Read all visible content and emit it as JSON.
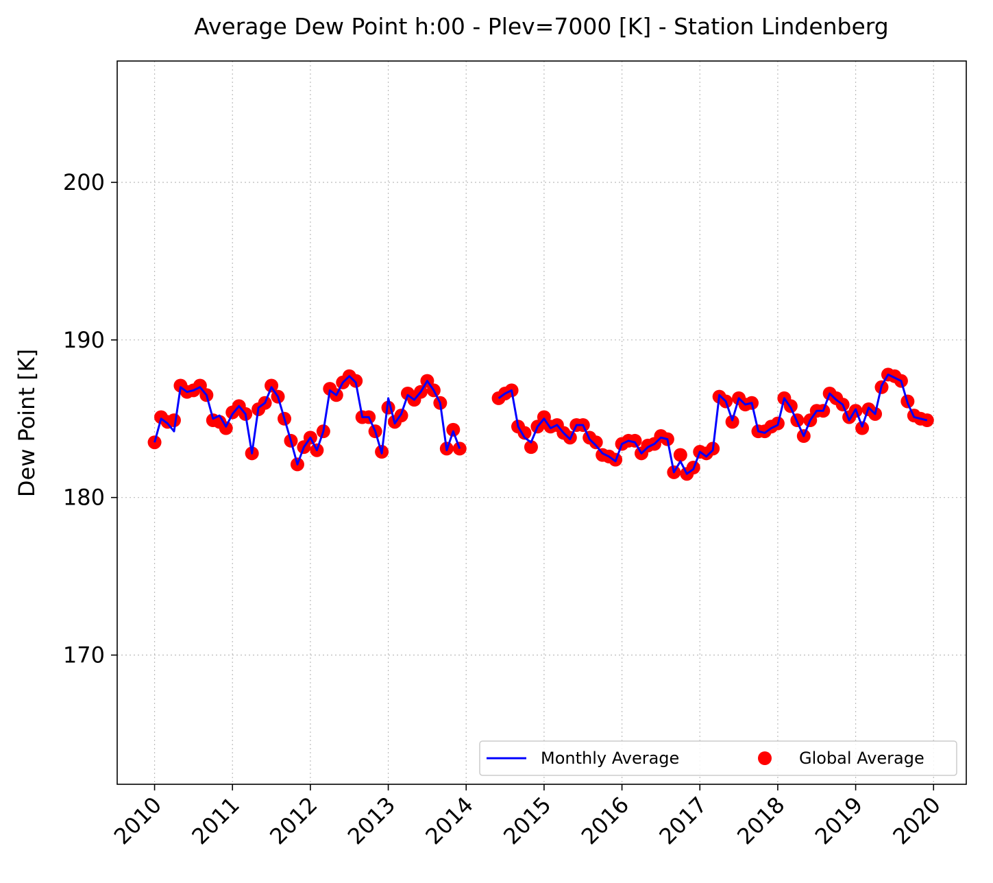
{
  "chart_data": {
    "type": "line",
    "title": "Average Dew Point h:00 - Plev=7000 [K] - Station Lindenberg",
    "xlabel": "",
    "ylabel": "Dew Point [K]",
    "xlim": [
      2009.52,
      2020.42
    ],
    "ylim": [
      161.8,
      207.7
    ],
    "x_ticks": [
      "2010",
      "2011",
      "2012",
      "2013",
      "2014",
      "2015",
      "2016",
      "2017",
      "2018",
      "2019",
      "2020"
    ],
    "y_ticks": [
      170,
      180,
      190,
      200
    ],
    "grid": true,
    "legend_position": "lower-right",
    "series": [
      {
        "name": "Monthly Average",
        "kind": "line",
        "color": "#0000ff",
        "years": [
          2010,
          2011,
          2012,
          2013,
          2014,
          2015,
          2016,
          2017,
          2018,
          2019
        ],
        "values": [
          [
            183.5,
            185.0,
            184.7,
            184.2,
            187.0,
            186.7,
            186.8,
            187.0,
            186.5,
            185.0,
            185.2,
            184.5
          ],
          [
            185.3,
            185.8,
            185.3,
            182.8,
            185.7,
            186.0,
            187.0,
            186.4,
            185.0,
            183.6,
            182.1,
            183.2
          ],
          [
            183.8,
            183.0,
            184.2,
            186.8,
            186.5,
            187.3,
            187.7,
            187.3,
            185.1,
            185.1,
            184.2,
            182.8
          ],
          [
            186.3,
            184.7,
            185.3,
            186.5,
            186.2,
            186.7,
            187.4,
            186.8,
            186.0,
            183.0,
            184.2,
            183.1
          ],
          [
            null,
            null,
            null,
            null,
            null,
            186.3,
            186.6,
            186.8,
            184.5,
            183.8,
            183.5,
            184.5
          ],
          [
            185.0,
            184.4,
            184.6,
            184.1,
            183.7,
            184.6,
            184.6,
            183.7,
            183.3,
            182.8,
            182.6,
            182.3
          ],
          [
            183.4,
            183.6,
            183.5,
            182.8,
            183.2,
            183.4,
            183.8,
            183.7,
            181.6,
            182.3,
            181.5,
            181.8
          ],
          [
            182.9,
            182.6,
            183.0,
            186.5,
            186.1,
            184.9,
            186.3,
            185.9,
            186.0,
            184.2,
            184.1,
            184.4
          ],
          [
            184.6,
            186.3,
            185.7,
            184.8,
            183.9,
            184.9,
            185.5,
            185.5,
            186.6,
            186.2,
            185.9,
            184.9
          ],
          [
            185.6,
            184.5,
            185.7,
            185.3,
            187.1,
            187.8,
            187.6,
            187.4,
            186.0,
            185.1,
            185.0,
            184.9
          ]
        ]
      },
      {
        "name": "Global Average",
        "kind": "scatter",
        "color": "#ff0000",
        "years": [
          2010,
          2011,
          2012,
          2013,
          2014,
          2015,
          2016,
          2017,
          2018,
          2019
        ],
        "values": [
          [
            183.5,
            185.1,
            184.8,
            184.9,
            187.1,
            186.7,
            186.8,
            187.1,
            186.5,
            184.9,
            184.8,
            184.4
          ],
          [
            185.4,
            185.8,
            185.3,
            182.8,
            185.6,
            186.0,
            187.1,
            186.4,
            185.0,
            183.6,
            182.1,
            183.2
          ],
          [
            183.8,
            183.0,
            184.2,
            186.9,
            186.5,
            187.3,
            187.7,
            187.4,
            185.1,
            185.1,
            184.2,
            182.9
          ],
          [
            185.7,
            184.8,
            185.2,
            186.6,
            186.2,
            186.7,
            187.4,
            186.8,
            186.0,
            183.1,
            184.3,
            183.1
          ],
          [
            null,
            null,
            null,
            null,
            null,
            186.3,
            186.6,
            186.8,
            184.5,
            184.1,
            183.2,
            184.5
          ],
          [
            185.1,
            184.5,
            184.6,
            184.1,
            183.8,
            184.6,
            184.6,
            183.8,
            183.5,
            182.7,
            182.6,
            182.4
          ],
          [
            183.4,
            183.6,
            183.6,
            182.8,
            183.3,
            183.4,
            183.9,
            183.7,
            181.6,
            182.7,
            181.5,
            181.9
          ],
          [
            182.9,
            182.8,
            183.1,
            186.4,
            186.1,
            184.8,
            186.3,
            185.9,
            186.0,
            184.2,
            184.2,
            184.5
          ],
          [
            184.7,
            186.3,
            185.8,
            184.9,
            183.9,
            184.9,
            185.5,
            185.5,
            186.6,
            186.3,
            185.9,
            185.1
          ],
          [
            185.5,
            184.4,
            185.6,
            185.3,
            187.0,
            187.8,
            187.7,
            187.4,
            186.1,
            185.2,
            185.0,
            184.9
          ]
        ]
      }
    ]
  }
}
